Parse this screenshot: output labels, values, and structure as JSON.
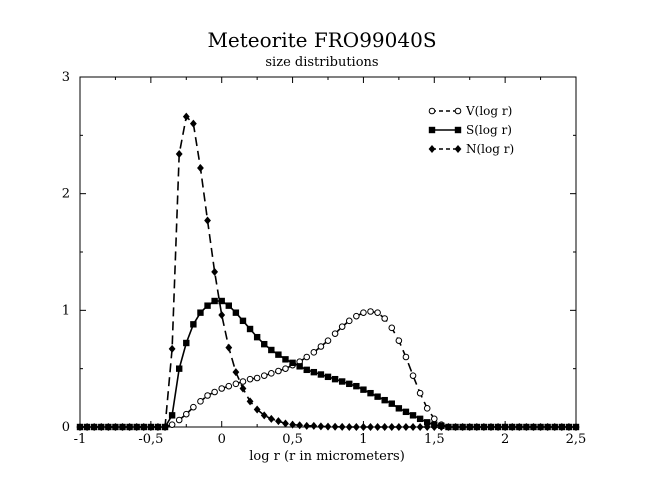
{
  "chart_data": {
    "type": "line",
    "title": "Meteorite FRO99040S",
    "subtitle": "size distributions",
    "xlabel": "log r (r in micrometers)",
    "ylabel": "",
    "xlim": [
      -1,
      2.5
    ],
    "ylim": [
      0,
      3
    ],
    "x_ticks": [
      -1,
      -0.5,
      0,
      0.5,
      1,
      1.5,
      2,
      2.5
    ],
    "x_tick_labels": [
      "-1",
      "-0,5",
      "0",
      "0,5",
      "1",
      "1,5",
      "2",
      "2,5"
    ],
    "y_ticks": [
      0,
      1,
      2,
      3
    ],
    "y_tick_labels": [
      "0",
      "1",
      "2",
      "3"
    ],
    "grid": false,
    "legend_position": "top-right",
    "series": [
      {
        "name": "V(log r)",
        "line_style": "dashed",
        "marker": "open-circle",
        "x": [
          -1.0,
          -0.95,
          -0.9,
          -0.85,
          -0.8,
          -0.75,
          -0.7,
          -0.65,
          -0.6,
          -0.55,
          -0.5,
          -0.45,
          -0.4,
          -0.35,
          -0.3,
          -0.25,
          -0.2,
          -0.15,
          -0.1,
          -0.05,
          0.0,
          0.05,
          0.1,
          0.15,
          0.2,
          0.25,
          0.3,
          0.35,
          0.4,
          0.45,
          0.5,
          0.55,
          0.6,
          0.65,
          0.7,
          0.75,
          0.8,
          0.85,
          0.9,
          0.95,
          1.0,
          1.05,
          1.1,
          1.15,
          1.2,
          1.25,
          1.3,
          1.35,
          1.4,
          1.45,
          1.5,
          1.55,
          1.6,
          1.65,
          1.7,
          1.75,
          1.8,
          1.85,
          1.9,
          1.95,
          2.0,
          2.05,
          2.1,
          2.15,
          2.2,
          2.25,
          2.3,
          2.35,
          2.4,
          2.45,
          2.5
        ],
        "values": [
          0,
          0,
          0,
          0,
          0,
          0,
          0,
          0,
          0,
          0,
          0,
          0,
          0,
          0.02,
          0.06,
          0.11,
          0.17,
          0.22,
          0.27,
          0.3,
          0.33,
          0.35,
          0.37,
          0.39,
          0.41,
          0.42,
          0.44,
          0.46,
          0.48,
          0.5,
          0.53,
          0.56,
          0.6,
          0.64,
          0.69,
          0.74,
          0.8,
          0.86,
          0.91,
          0.95,
          0.98,
          0.99,
          0.98,
          0.93,
          0.85,
          0.74,
          0.6,
          0.44,
          0.29,
          0.16,
          0.07,
          0.02,
          0,
          0,
          0,
          0,
          0,
          0,
          0,
          0,
          0,
          0,
          0,
          0,
          0,
          0,
          0,
          0,
          0,
          0,
          0
        ]
      },
      {
        "name": "S(log r)",
        "line_style": "solid",
        "marker": "filled-square",
        "x": [
          -1.0,
          -0.95,
          -0.9,
          -0.85,
          -0.8,
          -0.75,
          -0.7,
          -0.65,
          -0.6,
          -0.55,
          -0.5,
          -0.45,
          -0.4,
          -0.35,
          -0.3,
          -0.25,
          -0.2,
          -0.15,
          -0.1,
          -0.05,
          0.0,
          0.05,
          0.1,
          0.15,
          0.2,
          0.25,
          0.3,
          0.35,
          0.4,
          0.45,
          0.5,
          0.55,
          0.6,
          0.65,
          0.7,
          0.75,
          0.8,
          0.85,
          0.9,
          0.95,
          1.0,
          1.05,
          1.1,
          1.15,
          1.2,
          1.25,
          1.3,
          1.35,
          1.4,
          1.45,
          1.5,
          1.55,
          1.6,
          1.65,
          1.7,
          1.75,
          1.8,
          1.85,
          1.9,
          1.95,
          2.0,
          2.05,
          2.1,
          2.15,
          2.2,
          2.25,
          2.3,
          2.35,
          2.4,
          2.45,
          2.5
        ],
        "values": [
          0,
          0,
          0,
          0,
          0,
          0,
          0,
          0,
          0,
          0,
          0,
          0,
          0,
          0.1,
          0.5,
          0.72,
          0.88,
          0.98,
          1.04,
          1.08,
          1.08,
          1.04,
          0.98,
          0.91,
          0.84,
          0.77,
          0.71,
          0.66,
          0.62,
          0.58,
          0.55,
          0.52,
          0.49,
          0.47,
          0.45,
          0.43,
          0.41,
          0.39,
          0.37,
          0.35,
          0.32,
          0.29,
          0.26,
          0.23,
          0.2,
          0.16,
          0.13,
          0.1,
          0.07,
          0.04,
          0.02,
          0.01,
          0,
          0,
          0,
          0,
          0,
          0,
          0,
          0,
          0,
          0,
          0,
          0,
          0,
          0,
          0,
          0,
          0,
          0,
          0
        ]
      },
      {
        "name": "N(log r)",
        "line_style": "dashed",
        "marker": "filled-diamond",
        "x": [
          -1.0,
          -0.95,
          -0.9,
          -0.85,
          -0.8,
          -0.75,
          -0.7,
          -0.65,
          -0.6,
          -0.55,
          -0.5,
          -0.45,
          -0.4,
          -0.35,
          -0.3,
          -0.25,
          -0.2,
          -0.15,
          -0.1,
          -0.05,
          0.0,
          0.05,
          0.1,
          0.15,
          0.2,
          0.25,
          0.3,
          0.35,
          0.4,
          0.45,
          0.5,
          0.55,
          0.6,
          0.65,
          0.7,
          0.75,
          0.8,
          0.85,
          0.9,
          0.95,
          1.0,
          1.05,
          1.1,
          1.15,
          1.2,
          1.25,
          1.3,
          1.35,
          1.4,
          1.45,
          1.5,
          1.55,
          1.6,
          1.65,
          1.7,
          1.75,
          1.8,
          1.85,
          1.9,
          1.95,
          2.0,
          2.05,
          2.1,
          2.15,
          2.2,
          2.25,
          2.3,
          2.35,
          2.4,
          2.45,
          2.5
        ],
        "values": [
          0,
          0,
          0,
          0,
          0,
          0,
          0,
          0,
          0,
          0,
          0,
          0,
          0,
          0.67,
          2.34,
          2.66,
          2.6,
          2.22,
          1.77,
          1.33,
          0.96,
          0.68,
          0.47,
          0.33,
          0.22,
          0.15,
          0.1,
          0.07,
          0.05,
          0.03,
          0.02,
          0.015,
          0.01,
          0.01,
          0.005,
          0.003,
          0.002,
          0.001,
          0,
          0,
          0,
          0,
          0,
          0,
          0,
          0,
          0,
          0,
          0,
          0,
          0,
          0,
          0,
          0,
          0,
          0,
          0,
          0,
          0,
          0,
          0,
          0,
          0,
          0,
          0,
          0,
          0,
          0,
          0,
          0,
          0
        ]
      }
    ]
  }
}
